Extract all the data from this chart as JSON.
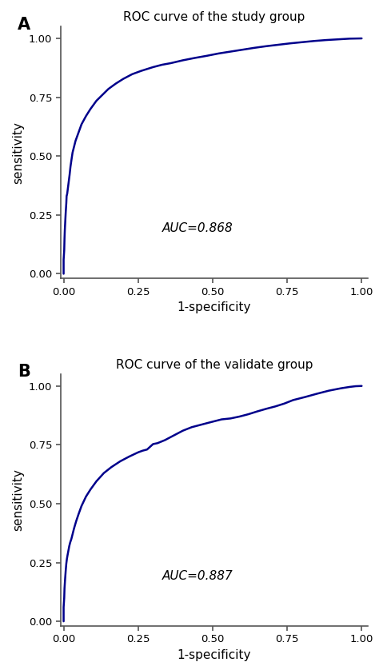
{
  "panel_A": {
    "title": "ROC curve of the study group",
    "auc_text": "AUC=0.868",
    "xlabel": "1-specificity",
    "ylabel": "sensitivity",
    "xlim": [
      -0.01,
      1.02
    ],
    "ylim": [
      -0.02,
      1.05
    ],
    "xticks": [
      0.0,
      0.25,
      0.5,
      0.75,
      1.0
    ],
    "yticks": [
      0.0,
      0.25,
      0.5,
      0.75,
      1.0
    ],
    "curve_color": "#00008B",
    "curve_lw": 1.8,
    "roc_x": [
      0.0,
      0.0,
      0.002,
      0.003,
      0.004,
      0.005,
      0.006,
      0.007,
      0.008,
      0.009,
      0.01,
      0.011,
      0.012,
      0.013,
      0.015,
      0.017,
      0.02,
      0.023,
      0.027,
      0.03,
      0.035,
      0.04,
      0.05,
      0.06,
      0.075,
      0.09,
      0.11,
      0.13,
      0.15,
      0.175,
      0.2,
      0.23,
      0.26,
      0.3,
      0.33,
      0.36,
      0.4,
      0.44,
      0.48,
      0.52,
      0.56,
      0.6,
      0.64,
      0.68,
      0.72,
      0.76,
      0.8,
      0.84,
      0.88,
      0.92,
      0.96,
      1.0
    ],
    "roc_y": [
      0.0,
      0.06,
      0.1,
      0.15,
      0.185,
      0.21,
      0.235,
      0.26,
      0.28,
      0.3,
      0.33,
      0.335,
      0.34,
      0.35,
      0.37,
      0.39,
      0.42,
      0.455,
      0.49,
      0.515,
      0.54,
      0.565,
      0.6,
      0.635,
      0.67,
      0.7,
      0.735,
      0.76,
      0.785,
      0.808,
      0.828,
      0.848,
      0.862,
      0.878,
      0.888,
      0.895,
      0.907,
      0.917,
      0.926,
      0.936,
      0.944,
      0.952,
      0.96,
      0.967,
      0.973,
      0.979,
      0.984,
      0.989,
      0.993,
      0.996,
      0.999,
      1.0
    ]
  },
  "panel_B": {
    "title": "ROC curve of the validate group",
    "auc_text": "AUC=0.887",
    "xlabel": "1-specificity",
    "ylabel": "sensitivity",
    "xlim": [
      -0.01,
      1.02
    ],
    "ylim": [
      -0.02,
      1.05
    ],
    "xticks": [
      0.0,
      0.25,
      0.5,
      0.75,
      1.0
    ],
    "yticks": [
      0.0,
      0.25,
      0.5,
      0.75,
      1.0
    ],
    "curve_color": "#00008B",
    "curve_lw": 1.8,
    "roc_x": [
      0.0,
      0.0,
      0.002,
      0.003,
      0.005,
      0.007,
      0.009,
      0.011,
      0.013,
      0.016,
      0.019,
      0.022,
      0.026,
      0.03,
      0.035,
      0.042,
      0.05,
      0.06,
      0.075,
      0.09,
      0.11,
      0.135,
      0.16,
      0.19,
      0.22,
      0.25,
      0.265,
      0.28,
      0.3,
      0.315,
      0.34,
      0.37,
      0.4,
      0.43,
      0.46,
      0.49,
      0.53,
      0.56,
      0.59,
      0.62,
      0.65,
      0.68,
      0.71,
      0.74,
      0.77,
      0.81,
      0.85,
      0.89,
      0.93,
      0.96,
      0.98,
      1.0
    ],
    "roc_y": [
      0.0,
      0.06,
      0.1,
      0.14,
      0.18,
      0.215,
      0.245,
      0.265,
      0.28,
      0.3,
      0.32,
      0.335,
      0.35,
      0.37,
      0.395,
      0.425,
      0.455,
      0.49,
      0.53,
      0.56,
      0.595,
      0.63,
      0.655,
      0.68,
      0.7,
      0.718,
      0.725,
      0.73,
      0.753,
      0.757,
      0.77,
      0.79,
      0.81,
      0.825,
      0.835,
      0.845,
      0.858,
      0.862,
      0.87,
      0.88,
      0.892,
      0.903,
      0.913,
      0.925,
      0.94,
      0.953,
      0.967,
      0.98,
      0.99,
      0.996,
      0.999,
      1.0
    ]
  },
  "label_A": "A",
  "label_B": "B",
  "label_fontsize": 15,
  "label_fontweight": "bold",
  "title_fontsize": 11,
  "axis_label_fontsize": 11,
  "tick_fontsize": 9.5,
  "auc_fontsize": 11,
  "background_color": "#ffffff",
  "fig_width": 4.74,
  "fig_height": 8.33
}
